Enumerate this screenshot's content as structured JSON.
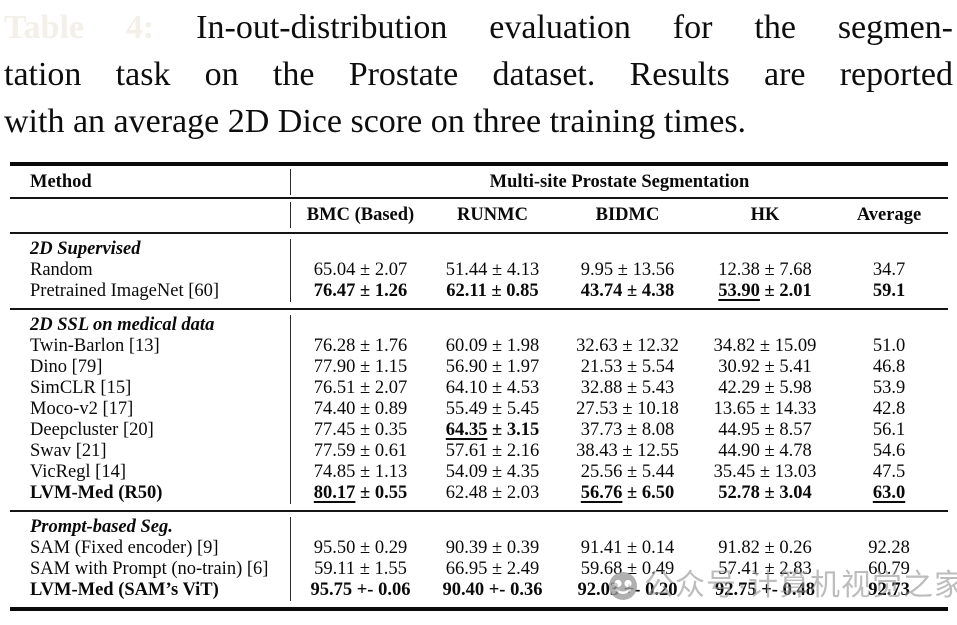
{
  "caption": {
    "label": "Table 4:",
    "line1": "In-out-distribution evaluation for the segmen-",
    "line2": "tation task on the Prostate dataset. Results are reported",
    "line3": "with an average 2D Dice score on three training times."
  },
  "table": {
    "header": {
      "method_label": "Method",
      "group_label": "Multi-site Prostate Segmentation",
      "columns": [
        "BMC (Based)",
        "RUNMC",
        "BIDMC",
        "HK",
        "Average"
      ]
    },
    "sections": [
      {
        "title": "2D Supervised",
        "rows": [
          {
            "method": "Random",
            "bold": false,
            "cells": [
              {
                "t": "65.04 ± 2.07"
              },
              {
                "t": "51.44 ± 4.13"
              },
              {
                "t": "9.95 ± 13.56"
              },
              {
                "t": "12.38 ± 7.68"
              },
              {
                "t": "34.7"
              }
            ]
          },
          {
            "method": "Pretrained ImageNet [60]",
            "bold": false,
            "cells": [
              {
                "t": "76.47 ± 1.26",
                "b": true
              },
              {
                "t": "62.11 ± 0.85",
                "b": true
              },
              {
                "t": "43.74 ± 4.38",
                "b": true
              },
              {
                "t": "53.90 ± 2.01",
                "b": true,
                "u": "53.90"
              },
              {
                "t": "59.1",
                "b": true
              }
            ]
          }
        ]
      },
      {
        "title": "2D SSL on medical data",
        "rows": [
          {
            "method": "Twin-Barlon [13]",
            "bold": false,
            "cells": [
              {
                "t": "76.28 ± 1.76"
              },
              {
                "t": "60.09 ± 1.98"
              },
              {
                "t": "32.63 ± 12.32"
              },
              {
                "t": "34.82 ± 15.09"
              },
              {
                "t": "51.0"
              }
            ]
          },
          {
            "method": "Dino [79]",
            "bold": false,
            "cells": [
              {
                "t": "77.90 ± 1.15"
              },
              {
                "t": "56.90 ± 1.97"
              },
              {
                "t": "21.53 ± 5.54"
              },
              {
                "t": "30.92 ± 5.41"
              },
              {
                "t": "46.8"
              }
            ]
          },
          {
            "method": "SimCLR [15]",
            "bold": false,
            "cells": [
              {
                "t": "76.51 ± 2.07"
              },
              {
                "t": "64.10 ± 4.53"
              },
              {
                "t": "32.88 ± 5.43"
              },
              {
                "t": "42.29 ± 5.98"
              },
              {
                "t": "53.9"
              }
            ]
          },
          {
            "method": "Moco-v2 [17]",
            "bold": false,
            "cells": [
              {
                "t": "74.40 ± 0.89"
              },
              {
                "t": "55.49 ± 5.45"
              },
              {
                "t": "27.53 ± 10.18"
              },
              {
                "t": "13.65 ± 14.33"
              },
              {
                "t": "42.8"
              }
            ]
          },
          {
            "method": "Deepcluster [20]",
            "bold": false,
            "cells": [
              {
                "t": "77.45 ± 0.35"
              },
              {
                "t": "64.35 ± 3.15",
                "b": true,
                "u": "64.35"
              },
              {
                "t": "37.73 ± 8.08"
              },
              {
                "t": "44.95 ± 8.57"
              },
              {
                "t": "56.1"
              }
            ]
          },
          {
            "method": "Swav [21]",
            "bold": false,
            "cells": [
              {
                "t": "77.59 ± 0.61"
              },
              {
                "t": "57.61 ± 2.16"
              },
              {
                "t": "38.43 ± 12.55"
              },
              {
                "t": "44.90 ± 4.78"
              },
              {
                "t": "54.6"
              }
            ]
          },
          {
            "method": "VicRegl [14]",
            "bold": false,
            "cells": [
              {
                "t": "74.85 ± 1.13"
              },
              {
                "t": "54.09 ± 4.35"
              },
              {
                "t": "25.56 ± 5.44"
              },
              {
                "t": "35.45 ± 13.03"
              },
              {
                "t": "47.5"
              }
            ]
          },
          {
            "method": "LVM-Med (R50)",
            "bold": true,
            "cells": [
              {
                "t": "80.17 ± 0.55",
                "b": true,
                "u": "80.17"
              },
              {
                "t": "62.48 ± 2.03"
              },
              {
                "t": "56.76 ± 6.50",
                "b": true,
                "u": "56.76"
              },
              {
                "t": "52.78 ± 3.04",
                "b": true
              },
              {
                "t": "63.0",
                "b": true,
                "u": "63.0"
              }
            ]
          }
        ]
      },
      {
        "title": "Prompt-based Seg.",
        "rows": [
          {
            "method": "SAM (Fixed encoder) [9]",
            "bold": false,
            "cells": [
              {
                "t": "95.50 ± 0.29"
              },
              {
                "t": "90.39 ± 0.39"
              },
              {
                "t": "91.41 ± 0.14"
              },
              {
                "t": "91.82 ± 0.26"
              },
              {
                "t": "92.28"
              }
            ]
          },
          {
            "method": "SAM with Prompt (no-train) [6]",
            "bold": false,
            "cells": [
              {
                "t": "59.11 ± 1.55"
              },
              {
                "t": "66.95 ± 2.49"
              },
              {
                "t": "59.68 ± 0.49"
              },
              {
                "t": "57.41 ± 2.83"
              },
              {
                "t": "60.79"
              }
            ]
          },
          {
            "method": "LVM-Med (SAM’s ViT)",
            "bold": true,
            "cells": [
              {
                "t": "95.75 +- 0.06",
                "b": true
              },
              {
                "t": "90.40 +- 0.36",
                "b": true
              },
              {
                "t": "92.03 +- 0.20",
                "b": true
              },
              {
                "t": "92.75 +- 0.48",
                "b": true
              },
              {
                "t": "92.73",
                "b": true
              }
            ]
          }
        ]
      }
    ]
  },
  "watermark": {
    "text": "公众号·计算机视觉之家"
  },
  "colors": {
    "text": "#0a0a0a",
    "rule": "#151515",
    "caption_label": "#f3efe9",
    "watermark_gray": "#949494"
  }
}
